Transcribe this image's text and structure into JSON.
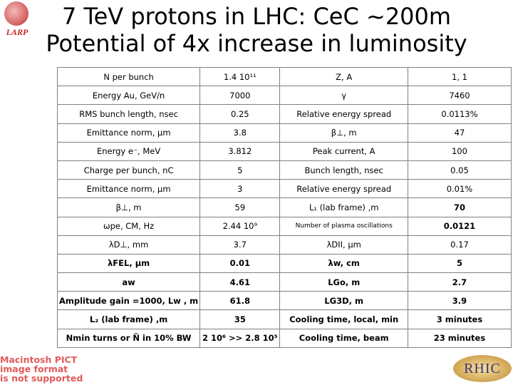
{
  "logo_text": "LARP",
  "title": {
    "line1": "7 TeV protons in LHC: CeC ~200m",
    "line2": "Potential of 4x increase in luminosity"
  },
  "rows": [
    [
      "N per bunch",
      "1.4 10¹¹",
      "Z, A",
      "1,  1"
    ],
    [
      "Energy Au, GeV/n",
      "7000",
      "γ",
      "7460"
    ],
    [
      "RMS bunch length, nsec",
      "0.25",
      "Relative energy spread",
      "0.0113%"
    ],
    [
      "Emittance norm,  µm",
      "3.8",
      "β⊥, m",
      "47"
    ],
    [
      "Energy e⁻, MeV",
      "3.812",
      "Peak current, A",
      "100"
    ],
    [
      "Charge per bunch, nC",
      "5",
      "Bunch length, nsec",
      "0.05"
    ],
    [
      "Emittance norm,  µm",
      "3",
      "Relative energy spread",
      "0.01%"
    ],
    [
      "β⊥, m",
      "59",
      "L₁ (lab frame) ,m",
      "70"
    ],
    [
      "ωpe, CM, Hz",
      "2.44 10⁹",
      "Number of plasma oscillations",
      "0.0121"
    ],
    [
      "λD⊥, mm",
      "3.7",
      "λDII, µm",
      "0.17"
    ],
    [
      "λFEL,  µm",
      "0.01",
      "λw,  cm",
      "5"
    ],
    [
      "aw",
      "4.61",
      "LGo,  m",
      "2.7"
    ],
    [
      "Amplitude gain =1000,  Lw ,  m",
      "61.8",
      "LG3D,  m",
      "3.9"
    ],
    [
      "L₂ (lab frame) ,m",
      "35",
      "Cooling time, local, min",
      "3 minutes"
    ],
    [
      "Nmin turns  or Ñ in 10% BW",
      "2 10⁶ >> 2.8 10⁵",
      "Cooling time, beam",
      "23 minutes"
    ]
  ],
  "pict_notice": [
    "Macintosh PICT",
    "image format",
    "is not supported"
  ],
  "rhic_logo": "RHIC"
}
